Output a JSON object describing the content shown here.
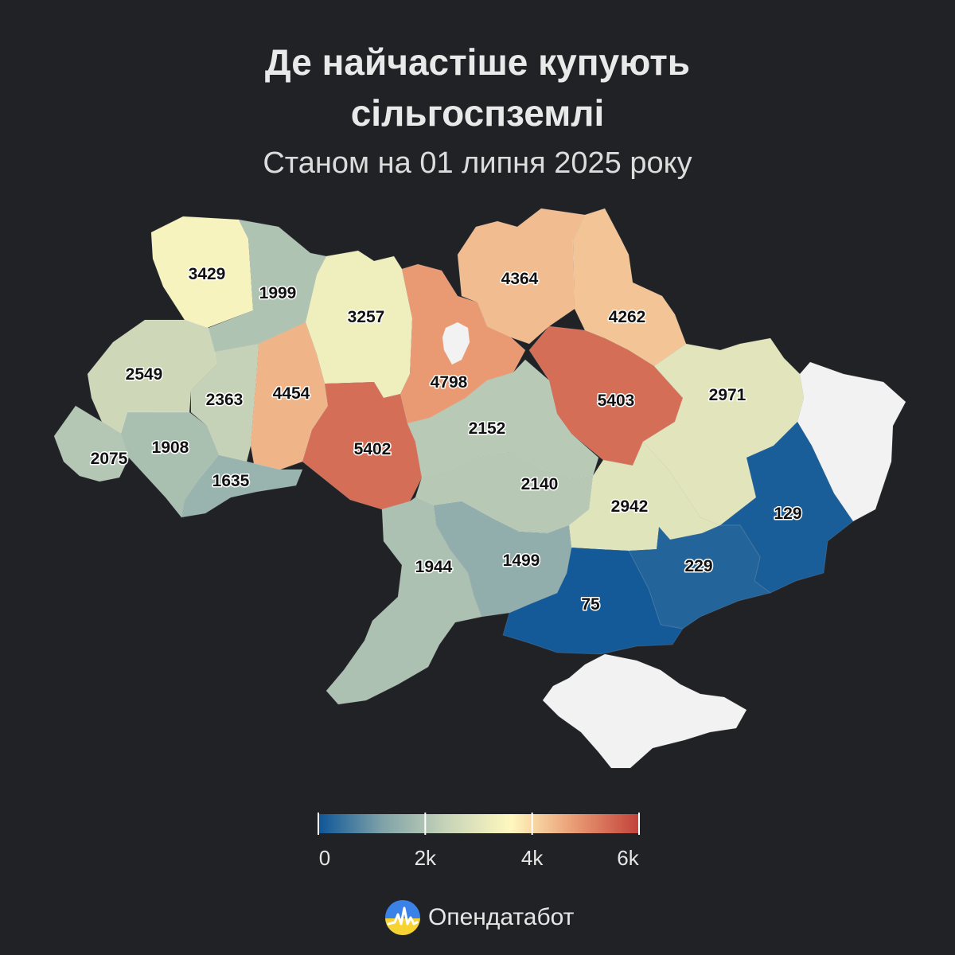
{
  "header": {
    "title_line1": "Де найчастіше купують",
    "title_line2": "сільгоспземлі",
    "subtitle": "Станом на 01 липня 2025 року"
  },
  "map": {
    "no_data_color": "#f2f2f2",
    "regions": [
      {
        "id": "volyn",
        "value": 3429
      },
      {
        "id": "rivne",
        "value": 1999
      },
      {
        "id": "zhytomyr",
        "value": 3257
      },
      {
        "id": "kyiv-oblast",
        "value": 4798
      },
      {
        "id": "kyiv-city",
        "value": null
      },
      {
        "id": "chernihiv",
        "value": 4364
      },
      {
        "id": "sumy",
        "value": 4262
      },
      {
        "id": "lviv",
        "value": 2549
      },
      {
        "id": "ternopil",
        "value": 2363
      },
      {
        "id": "khmelnytskyi",
        "value": 4454
      },
      {
        "id": "vinnytsia",
        "value": 5402
      },
      {
        "id": "cherkasy",
        "value": 2152
      },
      {
        "id": "poltava",
        "value": 5403
      },
      {
        "id": "kharkiv",
        "value": 2971
      },
      {
        "id": "luhansk",
        "value": null
      },
      {
        "id": "zakarpattia",
        "value": 2075
      },
      {
        "id": "ivano-frankivsk",
        "value": 1908
      },
      {
        "id": "chernivtsi",
        "value": 1635
      },
      {
        "id": "kirovohrad",
        "value": 2140
      },
      {
        "id": "dnipropetrovsk",
        "value": 2942
      },
      {
        "id": "donetsk",
        "value": 129
      },
      {
        "id": "zaporizhzhia",
        "value": 229
      },
      {
        "id": "kherson",
        "value": 75
      },
      {
        "id": "mykolaiv",
        "value": 1499
      },
      {
        "id": "odesa",
        "value": 1944
      },
      {
        "id": "crimea",
        "value": null
      }
    ]
  },
  "legend": {
    "min": 0,
    "max": 6000,
    "ticks": [
      {
        "value": 0,
        "label": "0"
      },
      {
        "value": 2000,
        "label": "2k"
      },
      {
        "value": 4000,
        "label": "4k"
      },
      {
        "value": 6000,
        "label": "6k"
      }
    ],
    "colors": [
      "#0d5597",
      "#7fa2a8",
      "#c7d4b8",
      "#fff8bf",
      "#e99a73",
      "#c2423a"
    ]
  },
  "brand": {
    "name": "Опендатабот",
    "icon": "opendatabot-logo-icon"
  }
}
